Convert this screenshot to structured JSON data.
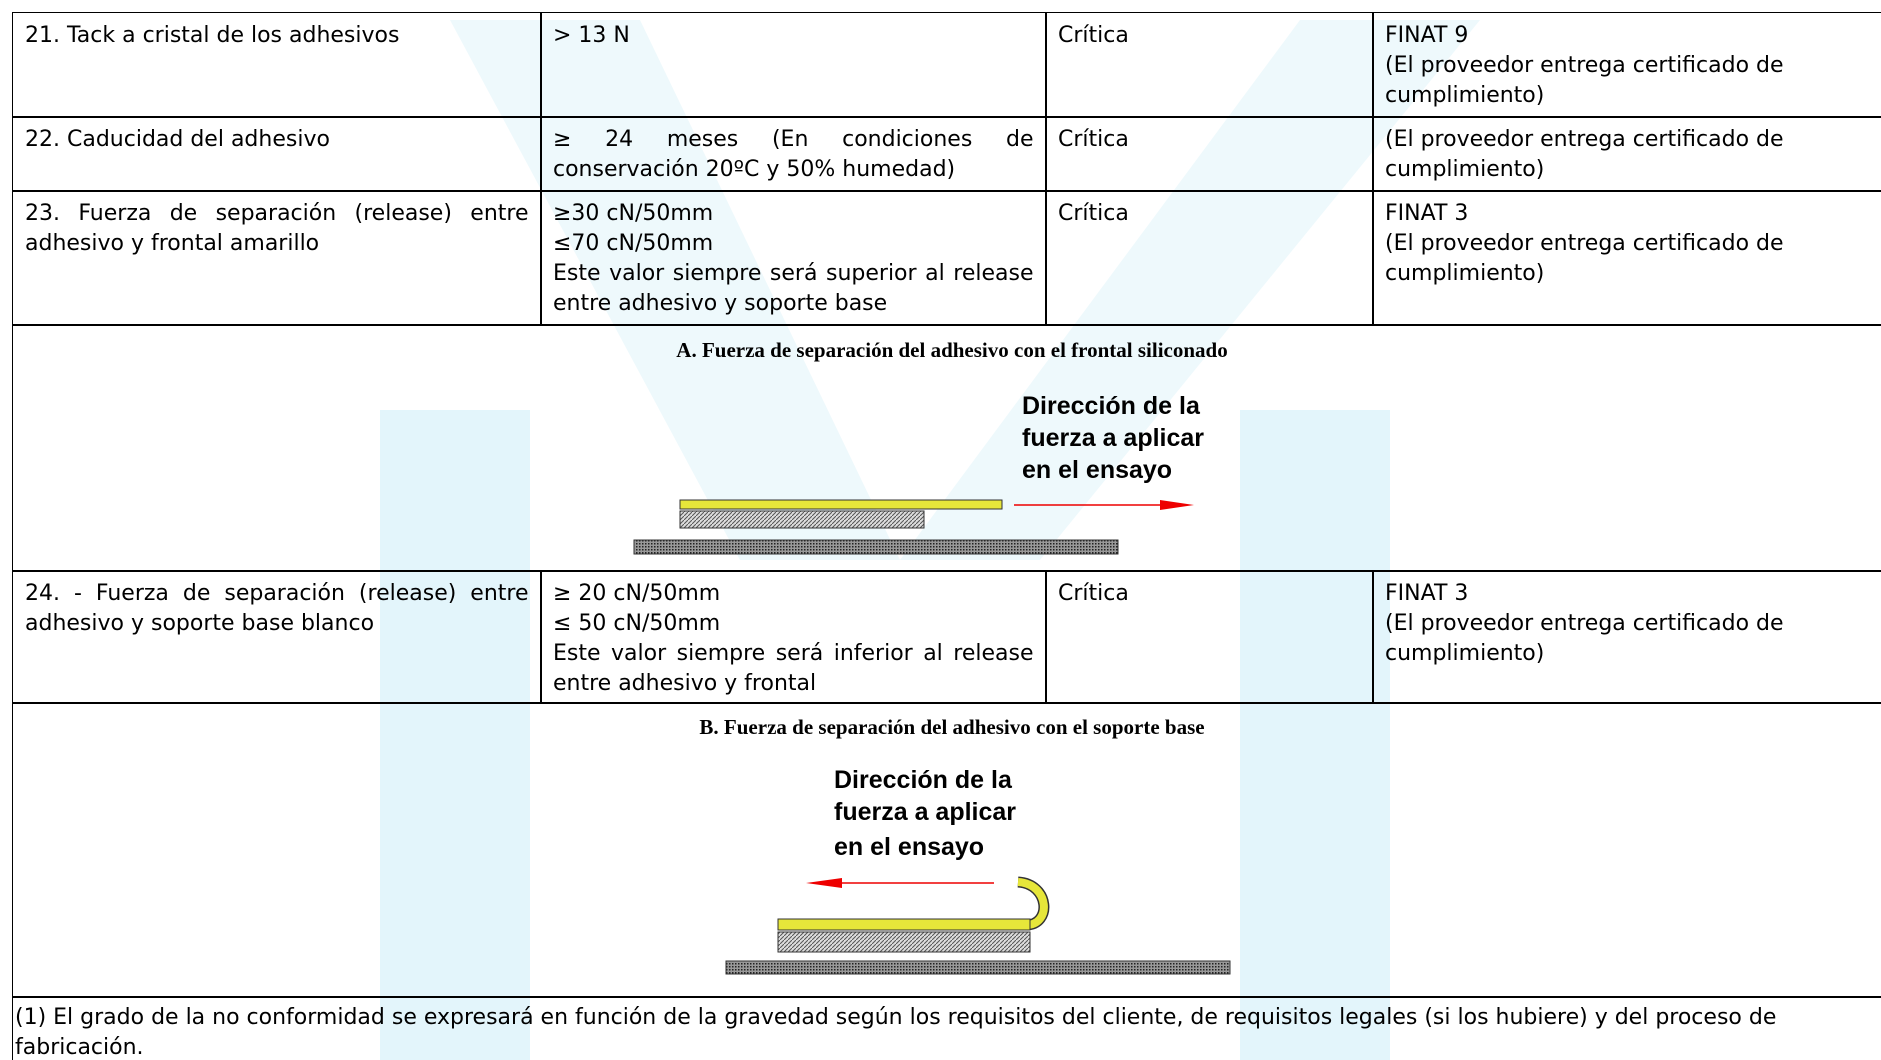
{
  "table": {
    "rows": [
      {
        "cells": [
          [
            "21. Tack a cristal de los adhesivos"
          ],
          [
            "> 13 N"
          ],
          [
            "Crítica"
          ],
          [
            "FINAT 9",
            "(El proveedor entrega certificado de cumplimiento)"
          ]
        ]
      },
      {
        "cells": [
          [
            "22. Caducidad del adhesivo"
          ],
          [
            "≥ 24 meses (En condiciones de conservación 20ºC y 50% humedad)"
          ],
          [
            "Crítica"
          ],
          [
            "(El proveedor entrega certificado de cumplimiento)"
          ]
        ]
      },
      {
        "cells": [
          [
            "23. Fuerza de separación (release) entre adhesivo y frontal amarillo"
          ],
          [
            "≥30 cN/50mm",
            "≤70 cN/50mm",
            "Este valor siempre será superior al release entre adhesivo y soporte base"
          ],
          [
            "Crítica"
          ],
          [
            "FINAT 3",
            " (El proveedor entrega certificado de cumplimiento)"
          ]
        ]
      },
      {
        "cells": [
          [
            "24. - Fuerza de separación (release) entre adhesivo y soporte base blanco"
          ],
          [
            "≥ 20 cN/50mm",
            "≤ 50 cN/50mm",
            "Este valor siempre será inferior al release entre adhesivo y frontal"
          ],
          [
            "Crítica"
          ],
          [
            "FINAT 3",
            "(El proveedor entrega certificado de cumplimiento)"
          ]
        ]
      }
    ]
  },
  "figures": [
    {
      "caption": "A. Fuerza de separación del adhesivo con el frontal siliconado",
      "label": [
        "Dirección de la",
        "fuerza a aplicar",
        "en el ensayo"
      ]
    },
    {
      "caption": "B. Fuerza de separación del adhesivo con el soporte base",
      "label": [
        "Dirección de la",
        "fuerza a aplicar",
        "en el ensayo"
      ]
    }
  ],
  "footnote": "(1) El grado de la no conformidad se expresará en función de la gravedad según los requisitos del cliente, de requisitos legales (si los hubiere) y del proceso de fabricación."
}
